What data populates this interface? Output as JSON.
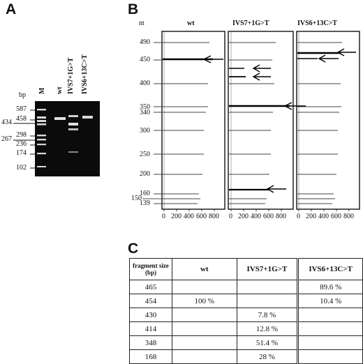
{
  "panels": {
    "a": "A",
    "b": "B",
    "c": "C"
  },
  "gel": {
    "bp_label": "bp",
    "lanes": [
      "M",
      "wt",
      "IVS7+1G>T",
      "IVS6+13C>T"
    ],
    "ladder_labels_right": [
      "587",
      "458",
      "298",
      "236",
      "174",
      "102"
    ],
    "ladder_labels_left": [
      "434",
      "267"
    ]
  },
  "electropherogram": {
    "nt_label": "nt",
    "columns": [
      "wt",
      "IVS7+1G>T",
      "IVS6+13C>T"
    ],
    "size_labels": [
      "490",
      "450",
      "400",
      "350",
      "340",
      "300",
      "250",
      "200",
      "160",
      "150",
      "139"
    ],
    "x_ticks": [
      "0",
      "200",
      "400",
      "600",
      "800"
    ]
  },
  "table": {
    "header": [
      "fragment size (bp)",
      "wt",
      "IVS7+1G>T",
      "IVS6+13C>T"
    ],
    "rows": [
      [
        "465",
        "",
        "",
        "89.6 %"
      ],
      [
        "454",
        "100 %",
        "",
        "10.4 %"
      ],
      [
        "430",
        "",
        "7.8 %",
        ""
      ],
      [
        "414",
        "",
        "12.8 %",
        ""
      ],
      [
        "348",
        "",
        "51.4 %",
        ""
      ],
      [
        "168",
        "",
        "28 %",
        ""
      ]
    ]
  }
}
